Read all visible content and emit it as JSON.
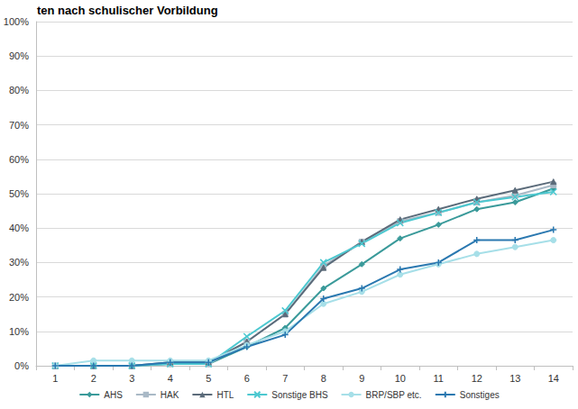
{
  "chart_data": {
    "type": "line",
    "title": "ten nach schulischer Vorbildung",
    "categories": [
      "1",
      "2",
      "3",
      "4",
      "5",
      "6",
      "7",
      "8",
      "9",
      "10",
      "11",
      "12",
      "13",
      "14"
    ],
    "series": [
      {
        "name": "AHS",
        "color": "#3a9a9a",
        "marker": "diamond",
        "values": [
          0,
          0,
          0,
          0.5,
          0.5,
          5.5,
          11,
          22.5,
          29.5,
          37,
          41,
          45.5,
          47.5,
          51.5
        ]
      },
      {
        "name": "HAK",
        "color": "#a9b9c6",
        "marker": "square",
        "values": [
          0,
          0,
          0,
          0.5,
          0.5,
          7,
          15,
          29,
          36,
          42,
          44.5,
          47.5,
          49.5,
          52.5
        ]
      },
      {
        "name": "HTL",
        "color": "#5b6b7a",
        "marker": "triangle",
        "values": [
          0,
          0,
          0,
          1,
          1,
          7,
          15,
          28.5,
          36,
          42.5,
          45.5,
          48.5,
          51,
          53.5
        ]
      },
      {
        "name": "Sonstige BHS",
        "color": "#4cc8d0",
        "marker": "cross",
        "values": [
          0,
          0,
          0,
          0.5,
          0.5,
          8.5,
          16,
          30,
          35.5,
          41.5,
          44.5,
          47.5,
          49,
          50.5
        ]
      },
      {
        "name": "BRP/SBP etc.",
        "color": "#a6dfe8",
        "marker": "circle",
        "values": [
          0,
          1.5,
          1.5,
          1.5,
          1.5,
          6,
          10,
          18,
          21.5,
          26.5,
          29.5,
          32.5,
          34.5,
          36.5
        ]
      },
      {
        "name": "Sonstiges",
        "color": "#2a78b0",
        "marker": "plus",
        "values": [
          0,
          0,
          0,
          1,
          1,
          5.5,
          9,
          19.5,
          22.5,
          28,
          30,
          36.5,
          36.5,
          39.5
        ]
      }
    ],
    "ylim": [
      0,
      100
    ],
    "yticks": [
      {
        "value": 0,
        "label": "0%"
      },
      {
        "value": 10,
        "label": "10%"
      },
      {
        "value": 20,
        "label": "20%"
      },
      {
        "value": 30,
        "label": "30%"
      },
      {
        "value": 40,
        "label": "40%"
      },
      {
        "value": 50,
        "label": "50%"
      },
      {
        "value": 60,
        "label": "60%"
      },
      {
        "value": 70,
        "label": "70%"
      },
      {
        "value": 80,
        "label": "80%"
      },
      {
        "value": 90,
        "label": "90%"
      },
      {
        "value": 100,
        "label": "100%"
      }
    ],
    "grid": true,
    "legend": "bottom"
  }
}
